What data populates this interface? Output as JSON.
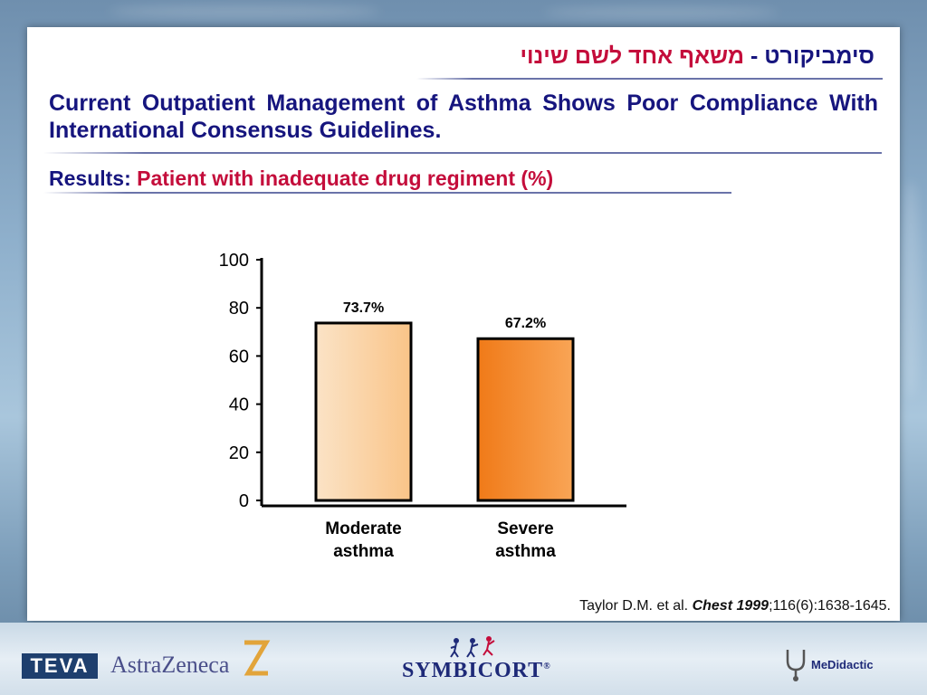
{
  "header": {
    "hebrew_title_main": "סימביקורט -",
    "hebrew_title_red": "משאף אחד לשם שינוי",
    "title": "Current Outpatient Management of Asthma Shows Poor Compliance With International Consensus Guidelines.",
    "results_label": "Results:",
    "results_text": "Patient with inadequate drug regiment (%)"
  },
  "chart_data": {
    "type": "bar",
    "categories": [
      "Moderate\nasthma",
      "Severe\nasthma"
    ],
    "category_lines": [
      [
        "Moderate",
        "asthma"
      ],
      [
        "Severe",
        "asthma"
      ]
    ],
    "values": [
      73.7,
      67.2
    ],
    "data_labels": [
      "73.7%",
      "67.2%"
    ],
    "ylim": [
      0,
      100
    ],
    "yticks": [
      "0",
      "20",
      "40",
      "60",
      "80",
      "100"
    ],
    "grid": false,
    "bar_colors": [
      [
        "#fbe3c6",
        "#f9c488"
      ],
      [
        "#f07a18",
        "#f9a556"
      ]
    ]
  },
  "citation": {
    "authors": "Taylor D.M. et al.",
    "journal": "Chest 1999",
    "rest": ";116(6):1638-1645."
  },
  "footer": {
    "teva": "TEVA",
    "astrazeneca": "AstraZeneca",
    "symbicort": "SYMBICORT",
    "symbicort_mark": "®",
    "medidactic": "MeDidactic"
  },
  "colors": {
    "title_blue": "#16157e",
    "accent_red": "#c40d3b"
  }
}
